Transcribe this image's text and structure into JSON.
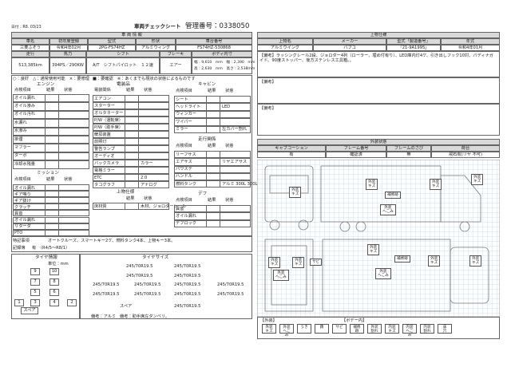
{
  "header": {
    "date": "日付：R8. 03/23",
    "title": "車両チェックシート",
    "control_no": "管理番号：0338050"
  },
  "vehicle": {
    "title": "車 両 情 報",
    "labels1": [
      "車名",
      "初年度登録",
      "型式",
      "形状",
      "車台番号"
    ],
    "values1": [
      "三菱ふそう",
      "令和4年02月",
      "2PG-FS74HZ",
      "アルミウィング",
      "FS74HZ-530868"
    ],
    "labels2": [
      "走行",
      "馬力",
      "シフト",
      "ブレーキ",
      "ボディ内寸"
    ],
    "values2": [
      "513,385km",
      "394PS／290KW",
      "A/T　シフトパイロット　１２速",
      "エアー"
    ],
    "body_size": [
      "幅：9,610　mm　幅：2,390　mm",
      "高：2,630　mm　高さ：2,538mm"
    ]
  },
  "legend": [
    "○：良好　△：通常使用可能　×：要修理",
    "■：要確認　※：あくまでも現状の状態によるものです"
  ],
  "sections": [
    {
      "title": "エンジン",
      "headers": [
        "点検項目",
        "結果",
        "状態"
      ],
      "items": [
        [
          "オイル漏れ"
        ],
        [
          "オイル滲み"
        ],
        [
          "オイル汚れ"
        ],
        [
          "水漏れ"
        ],
        [
          "水滲み"
        ],
        [
          "排煙"
        ],
        [
          "マフラー"
        ],
        [
          "ターボ"
        ],
        [
          "冷却水残量"
        ]
      ]
    },
    {
      "title": "ミッション",
      "headers": [
        "点検項目",
        "結果",
        "状態"
      ],
      "items": [
        [
          "オイル漏れ"
        ],
        [
          "ギア鳴り"
        ],
        [
          "ギア抜け"
        ],
        [
          "クラッチ"
        ],
        [
          "異音"
        ],
        [
          "オイル漏れ"
        ],
        [
          "リターダ"
        ],
        [
          "PTO"
        ]
      ]
    },
    {
      "title": "電装品",
      "headers": [
        "電装関係",
        "結果",
        "状態"
      ],
      "items": [
        [
          "エアコン"
        ],
        [
          "スターター"
        ],
        [
          "オルタネーター"
        ],
        [
          "P/W（運転席）"
        ],
        [
          "P/W（助手席）"
        ],
        [
          "暖房装置"
        ],
        [
          "前照灯"
        ],
        [
          "警告ランプ"
        ],
        [
          "オーディオ"
        ],
        [
          "バックカメラ",
          "カラー"
        ],
        [
          "電格ミラー"
        ],
        [
          "ETC",
          "2.0"
        ],
        [
          "タコグラフ",
          "アナログ"
        ]
      ]
    },
    {
      "title": "上物仕様",
      "headers": [
        "結果",
        "状態"
      ],
      "items": [
        [
          "床材質",
          "木材、ジョロダーレール"
        ]
      ]
    },
    {
      "title": "キャビン",
      "headers": [
        "点検項目",
        "結果",
        "状態"
      ],
      "items": [
        [
          "シート"
        ],
        [
          "ヘッドライト",
          "LED"
        ],
        [
          "ウィンカー"
        ],
        [
          "ワイパー"
        ],
        [
          "ミラー",
          "左カバー割れ"
        ]
      ]
    },
    {
      "title": "走行関係",
      "headers": [
        "点検項目",
        "結果",
        "状態"
      ],
      "items": [
        [
          "リーフサス"
        ],
        [
          "エアサス",
          "リヤエアサス"
        ],
        [
          "パワステ"
        ],
        [
          "ハンドル"
        ],
        [
          "燃料タンク",
          "アルミ 300L 300L"
        ]
      ]
    },
    {
      "title": "デフ",
      "headers": [
        "点検項目",
        "結果",
        "状態"
      ],
      "items": [
        [
          "異音"
        ],
        [
          "オイル漏れ"
        ],
        [
          "デフロック"
        ]
      ]
    }
  ],
  "notes": {
    "label": "特記事項",
    "text": "オートクルーズ、スマートキー2ケ、燃料タンク4本、上物キー3本。",
    "record_label": "記録簿",
    "record": "有　（R4/5～R8/1）"
  },
  "tires": {
    "title": "タイヤ情報",
    "unit": "単位：mm",
    "size_title": "タイヤサイズ",
    "positions": [
      "9",
      "10",
      "7",
      "8",
      "5",
      "6",
      "3",
      "4",
      "1",
      "2"
    ],
    "spare": "スペア",
    "sizes": [
      "245/70R19.5",
      "245/70R19.5",
      "245/70R19.5",
      "245/70R19.5",
      "245/70R19.5",
      "245/70R19.5",
      "245/70R19.5",
      "245/70R19.5",
      "245/70R19.5",
      "245/70R19.5",
      "245/70R19.5",
      "245/70R19.5",
      "245/70R19.5"
    ],
    "spare_label": "スペア",
    "remark_wheel": "備考：アルミ",
    "remark": "備考：助手席左ダンベリ。"
  },
  "upper": {
    "title": "上物仕様",
    "labels": [
      "上物名",
      "メーカー",
      "型式「製造番号」",
      "年式"
    ],
    "values": [
      "アルミウイング",
      "パブコ",
      "「21-9A1995」",
      "令和4年01月"
    ],
    "remarks": [
      "【備考】ラッシングレール2段、ジョロダー4列（ローラー、埋め付有り）、LED庫内灯4ケ、引き出しフック10対、バディナガイド、90度ストッパー、後方ステンレス工具箱。。",
      "【備考】",
      "【備考】"
    ]
  },
  "exterior": {
    "title": "外装状態",
    "labels": [
      "キャブコーション",
      "フレーム番号",
      "フレームのさび",
      "荷台"
    ],
    "values": [
      "有",
      "確認済",
      "無",
      "飛石有(リヤ 不可)"
    ],
    "tags": [
      "外装\nキズ",
      "外装\nキズ",
      "補修跡",
      "外装\nキズ",
      "外装\nキズ",
      "外装\nへこみ",
      "外装\nキズ",
      "外装\nキズ",
      "外装\nへこみ",
      "サビ",
      "外装\nキズ",
      "補修跡",
      "外装\nキズ",
      "外装\nキズ",
      "外装\nへこみ"
    ],
    "legend_titles": [
      "【外装】",
      "【ボデー内】"
    ],
    "legend_items": [
      "外装\nキズ",
      "外装\nへこみ",
      "うき",
      "錆",
      "サビ",
      "補修跡",
      "外装\n割れ",
      "内装\nキズ",
      "内装\nへこみ",
      "内装\n割れ",
      "床\n穴"
    ]
  }
}
